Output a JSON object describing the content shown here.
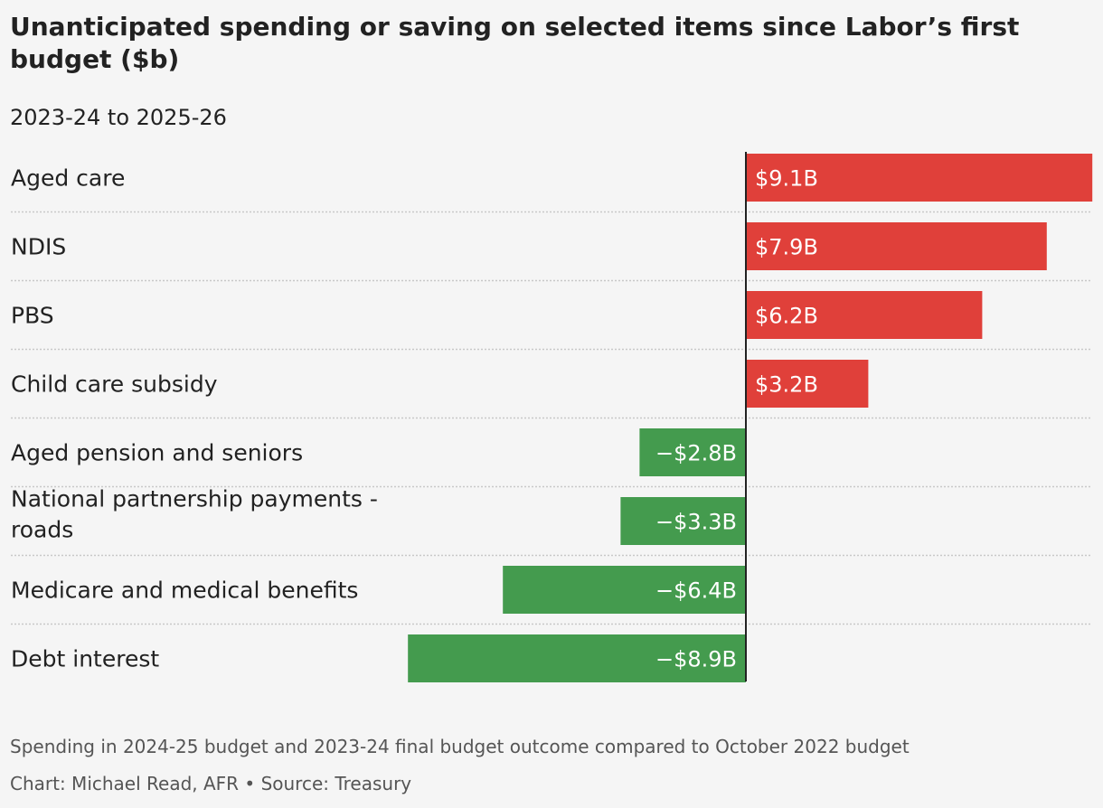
{
  "chart_data": {
    "type": "bar",
    "orientation": "horizontal",
    "title": "Unanticipated spending or saving on selected items since Labor’s first budget ($b)",
    "subtitle": "2023-24 to 2025-26",
    "categories": [
      "Aged care",
      "NDIS",
      "PBS",
      "Child care subsidy",
      "Aged pension and seniors",
      "National partnership payments - roads",
      "Medicare and medical benefits",
      "Debt interest"
    ],
    "category_lines": [
      [
        "Aged care"
      ],
      [
        "NDIS"
      ],
      [
        "PBS"
      ],
      [
        "Child care subsidy"
      ],
      [
        "Aged pension and seniors"
      ],
      [
        "National partnership payments -",
        "roads"
      ],
      [
        "Medicare and medical benefits"
      ],
      [
        "Debt interest"
      ]
    ],
    "values": [
      9.1,
      7.9,
      6.2,
      3.2,
      -2.8,
      -3.3,
      -6.4,
      -8.9
    ],
    "value_labels": [
      "$9.1B",
      "$7.9B",
      "$6.2B",
      "$3.2B",
      "−$2.8B",
      "−$3.3B",
      "−$6.4B",
      "−$8.9B"
    ],
    "xlim": [
      -9.1,
      9.1
    ],
    "colors": {
      "positive": "#e0403a",
      "negative": "#449b4e",
      "label_text": "#ffffff",
      "axis": "#222222",
      "separator": "#c8c8c8"
    },
    "grid": false,
    "legend": "none",
    "note": "Spending in 2024-25 budget and 2023-24 final budget outcome compared to October 2022 budget",
    "source": "Chart: Michael Read, AFR • Source: Treasury"
  }
}
